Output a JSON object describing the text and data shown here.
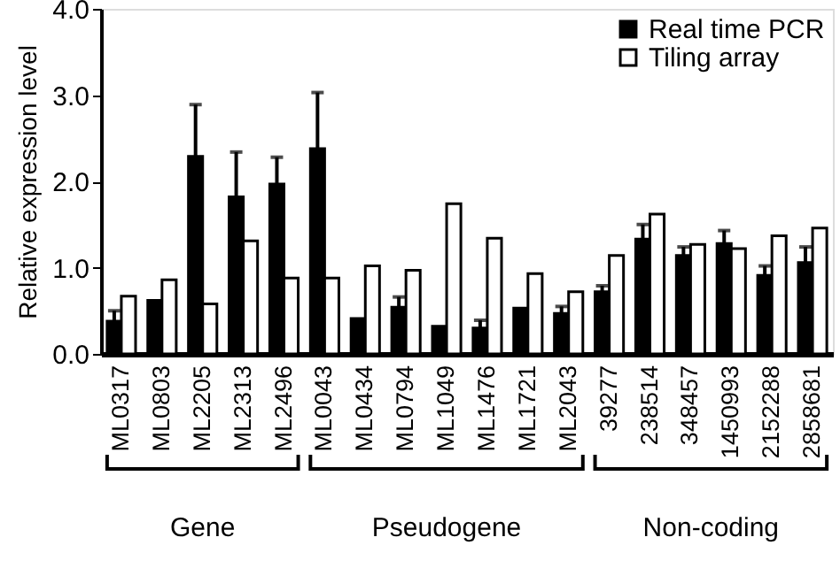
{
  "chart_data": {
    "type": "bar",
    "ylabel": "Relative expression level",
    "categories": [
      "ML0317",
      "ML0803",
      "ML2205",
      "ML2313",
      "ML2496",
      "ML0043",
      "ML0434",
      "ML0794",
      "ML1049",
      "ML1476",
      "ML1721",
      "ML2043",
      "39277",
      "238514",
      "348457",
      "1450993",
      "2152288",
      "2858681"
    ],
    "series": [
      {
        "name": "Real time PCR",
        "color": "#000000",
        "values": [
          0.38,
          0.62,
          2.29,
          1.82,
          1.97,
          2.38,
          0.41,
          0.54,
          0.32,
          0.3,
          0.53,
          0.47,
          0.72,
          1.33,
          1.14,
          1.28,
          0.91,
          1.06
        ],
        "errors": [
          [
            0.38,
            0.5
          ],
          null,
          [
            2.29,
            2.89
          ],
          [
            1.82,
            2.34
          ],
          [
            1.97,
            2.28
          ],
          [
            2.38,
            3.03
          ],
          null,
          [
            0.54,
            0.66
          ],
          null,
          [
            0.3,
            0.39
          ],
          null,
          [
            0.47,
            0.55
          ],
          [
            0.72,
            0.79
          ],
          [
            1.33,
            1.5
          ],
          [
            1.14,
            1.24
          ],
          [
            1.28,
            1.43
          ],
          [
            0.91,
            1.02
          ],
          [
            1.06,
            1.24
          ]
        ]
      },
      {
        "name": "Tiling array",
        "color": "#ffffff",
        "values": [
          0.67,
          0.86,
          0.58,
          1.31,
          0.88,
          0.88,
          1.02,
          0.97,
          1.74,
          1.34,
          0.93,
          0.72,
          1.14,
          1.62,
          1.27,
          1.22,
          1.37,
          1.46
        ]
      }
    ],
    "ylim": [
      0,
      4
    ],
    "yticks": [
      {
        "value": 0,
        "label": "0.0"
      },
      {
        "value": 1,
        "label": "1.0"
      },
      {
        "value": 2,
        "label": "2.0"
      },
      {
        "value": 3,
        "label": "3.0"
      },
      {
        "value": 4,
        "label": "4.0"
      }
    ],
    "grid": false,
    "legend": "top right",
    "annotations": [
      "Gene",
      "Pseudogene",
      "Non-coding"
    ]
  }
}
